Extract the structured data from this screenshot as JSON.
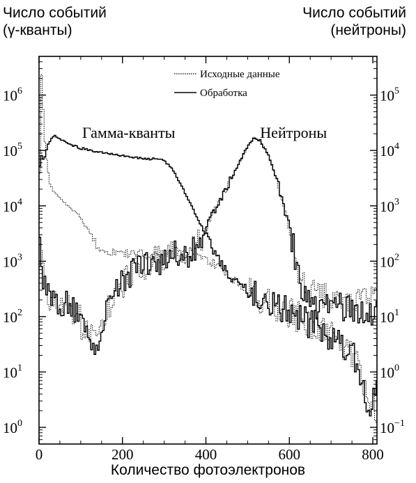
{
  "chart_data": {
    "type": "line",
    "title": "",
    "xlabel": "Количество фотоэлектронов",
    "ylabel_left_line1": "Число событий",
    "ylabel_left_line2": "(γ-кванты)",
    "ylabel_right_line1": "Число событий",
    "ylabel_right_line2": "(нейтроны)",
    "x_range": [
      0,
      810
    ],
    "y_left_range": [
      0.5,
      5000000
    ],
    "y_right_range": [
      0.05,
      500000
    ],
    "y_scale": "log",
    "x_ticks": [
      0,
      200,
      400,
      600,
      800
    ],
    "y_left_ticks": [
      {
        "base": "10",
        "exp": "0"
      },
      {
        "base": "10",
        "exp": "1"
      },
      {
        "base": "10",
        "exp": "2"
      },
      {
        "base": "10",
        "exp": "3"
      },
      {
        "base": "10",
        "exp": "4"
      },
      {
        "base": "10",
        "exp": "5"
      },
      {
        "base": "10",
        "exp": "6"
      }
    ],
    "y_right_ticks": [
      {
        "base": "10",
        "exp": "−1"
      },
      {
        "base": "10",
        "exp": "0"
      },
      {
        "base": "10",
        "exp": "1"
      },
      {
        "base": "10",
        "exp": "2"
      },
      {
        "base": "10",
        "exp": "3"
      },
      {
        "base": "10",
        "exp": "4"
      },
      {
        "base": "10",
        "exp": "5"
      }
    ],
    "legend_position": "top-center",
    "annotations": [
      {
        "text": "Гамма-кванты",
        "x": 215,
        "y": 200000
      },
      {
        "text": "Нейтроны",
        "x": 610,
        "y": 200000
      }
    ],
    "series": [
      {
        "name": "Исходные данные",
        "group": "gamma",
        "style": "dotted",
        "points": [
          [
            2,
            40000
          ],
          [
            5,
            3000000
          ],
          [
            8,
            1500000
          ],
          [
            12,
            200000
          ],
          [
            18,
            70000
          ],
          [
            25,
            25000
          ],
          [
            35,
            18000
          ],
          [
            50,
            14000
          ],
          [
            70,
            10000
          ],
          [
            90,
            7500
          ],
          [
            100,
            6000
          ],
          [
            110,
            4500
          ],
          [
            120,
            3500
          ],
          [
            130,
            2500
          ],
          [
            140,
            1900
          ],
          [
            160,
            1500
          ],
          [
            180,
            1450
          ],
          [
            200,
            1400
          ],
          [
            240,
            1350
          ],
          [
            280,
            1300
          ],
          [
            320,
            1250
          ],
          [
            350,
            1300
          ],
          [
            380,
            1250
          ],
          [
            400,
            1100
          ],
          [
            430,
            800
          ],
          [
            460,
            500
          ],
          [
            500,
            300
          ],
          [
            540,
            190
          ],
          [
            580,
            140
          ],
          [
            620,
            100
          ],
          [
            660,
            70
          ],
          [
            700,
            45
          ],
          [
            740,
            25
          ],
          [
            760,
            15
          ],
          [
            780,
            6
          ],
          [
            795,
            3
          ],
          [
            805,
            2
          ]
        ]
      },
      {
        "name": "Обработка",
        "group": "gamma",
        "style": "solid",
        "points": [
          [
            2,
            55000
          ],
          [
            5,
            80000
          ],
          [
            12,
            65000
          ],
          [
            22,
            130000
          ],
          [
            35,
            190000
          ],
          [
            50,
            160000
          ],
          [
            70,
            130000
          ],
          [
            100,
            110000
          ],
          [
            140,
            95000
          ],
          [
            180,
            85000
          ],
          [
            220,
            77000
          ],
          [
            260,
            70000
          ],
          [
            280,
            70000
          ],
          [
            300,
            65000
          ],
          [
            320,
            45000
          ],
          [
            340,
            25000
          ],
          [
            360,
            12000
          ],
          [
            380,
            6000
          ],
          [
            400,
            3000
          ],
          [
            420,
            1500
          ],
          [
            440,
            800
          ],
          [
            460,
            500
          ],
          [
            500,
            300
          ],
          [
            540,
            190
          ],
          [
            580,
            140
          ],
          [
            620,
            100
          ],
          [
            660,
            70
          ],
          [
            700,
            45
          ],
          [
            740,
            25
          ],
          [
            760,
            15
          ],
          [
            780,
            6
          ],
          [
            795,
            1
          ],
          [
            805,
            5
          ]
        ]
      },
      {
        "name": "Исходные данные",
        "group": "neutron",
        "style": "dotted",
        "points": [
          [
            2,
            300
          ],
          [
            10,
            60
          ],
          [
            30,
            15
          ],
          [
            60,
            20
          ],
          [
            90,
            12
          ],
          [
            110,
            5
          ],
          [
            130,
            4
          ],
          [
            140,
            3
          ],
          [
            150,
            6
          ],
          [
            170,
            15
          ],
          [
            200,
            40
          ],
          [
            240,
            80
          ],
          [
            280,
            100
          ],
          [
            320,
            120
          ],
          [
            350,
            130
          ],
          [
            380,
            200
          ],
          [
            400,
            400
          ],
          [
            420,
            800
          ],
          [
            440,
            1500
          ],
          [
            460,
            3000
          ],
          [
            480,
            6000
          ],
          [
            500,
            12000
          ],
          [
            515,
            17000
          ],
          [
            530,
            15000
          ],
          [
            550,
            8000
          ],
          [
            570,
            3000
          ],
          [
            590,
            800
          ],
          [
            610,
            200
          ],
          [
            625,
            50
          ],
          [
            640,
            30
          ],
          [
            660,
            24
          ],
          [
            690,
            25
          ],
          [
            720,
            24
          ],
          [
            750,
            22
          ],
          [
            780,
            20
          ],
          [
            800,
            18
          ]
        ]
      },
      {
        "name": "Обработка",
        "group": "neutron",
        "style": "solid",
        "points": [
          [
            2,
            300
          ],
          [
            10,
            60
          ],
          [
            30,
            15
          ],
          [
            60,
            20
          ],
          [
            90,
            12
          ],
          [
            110,
            5
          ],
          [
            130,
            4
          ],
          [
            140,
            2
          ],
          [
            150,
            6
          ],
          [
            170,
            15
          ],
          [
            200,
            40
          ],
          [
            240,
            80
          ],
          [
            280,
            100
          ],
          [
            320,
            120
          ],
          [
            350,
            130
          ],
          [
            380,
            200
          ],
          [
            400,
            400
          ],
          [
            420,
            800
          ],
          [
            440,
            1500
          ],
          [
            460,
            3000
          ],
          [
            480,
            6000
          ],
          [
            500,
            12000
          ],
          [
            515,
            17000
          ],
          [
            530,
            15000
          ],
          [
            550,
            8000
          ],
          [
            570,
            3000
          ],
          [
            590,
            800
          ],
          [
            610,
            200
          ],
          [
            625,
            40
          ],
          [
            640,
            20
          ],
          [
            660,
            18
          ],
          [
            690,
            17
          ],
          [
            720,
            16
          ],
          [
            750,
            15
          ],
          [
            780,
            14
          ],
          [
            800,
            10
          ]
        ]
      }
    ]
  }
}
